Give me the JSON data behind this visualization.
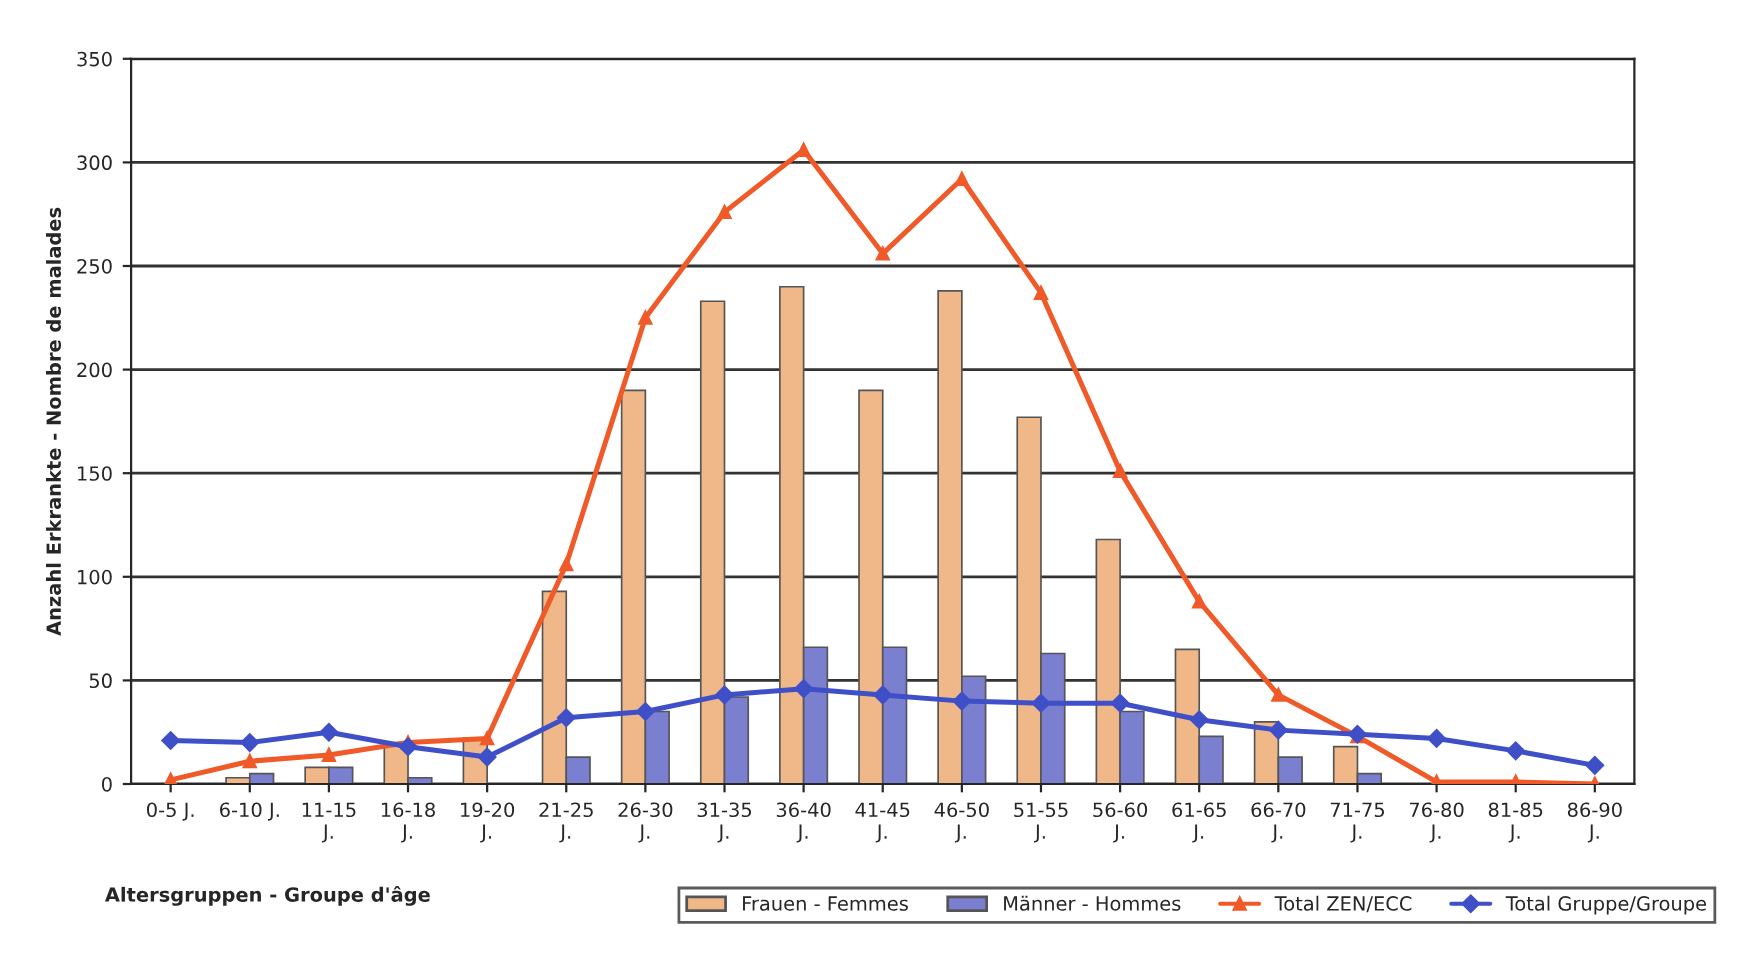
{
  "chart_data": {
    "type": "bar",
    "ylabel": "Anzahl Erkrankte - Nombre de malades",
    "annotations": [
      "Altersgruppen - Groupe d'âge"
    ],
    "categories": [
      "0-5 J.",
      "6-10 J.",
      "11-15\nJ.",
      "16-18\nJ.",
      "19-20\nJ.",
      "21-25\nJ.",
      "26-30\nJ.",
      "31-35\nJ.",
      "36-40\nJ.",
      "41-45\nJ.",
      "46-50\nJ.",
      "51-55\nJ.",
      "56-60\nJ.",
      "61-65\nJ.",
      "66-70\nJ.",
      "71-75\nJ.",
      "76-80\nJ.",
      "81-85\nJ.",
      "86-90\nJ."
    ],
    "series": [
      {
        "name": "Frauen - Femmes",
        "color": "#f0b888",
        "values": [
          0,
          3,
          8,
          20,
          22,
          93,
          190,
          233,
          240,
          190,
          238,
          177,
          118,
          65,
          30,
          18,
          0,
          0,
          0
        ]
      },
      {
        "name": "Männer - Hommes",
        "color": "#7b7fd0",
        "values": [
          0,
          5,
          8,
          3,
          0,
          13,
          35,
          42,
          66,
          66,
          52,
          63,
          35,
          23,
          13,
          5,
          0,
          0,
          0
        ]
      },
      {
        "name": "Total ZEN/ECC",
        "type": "line",
        "marker": "triangle",
        "color": "#f05a28",
        "values": [
          2,
          11,
          14,
          20,
          22,
          106,
          225,
          276,
          306,
          256,
          292,
          237,
          151,
          88,
          43,
          23,
          1,
          1,
          0
        ]
      },
      {
        "name": "Total Gruppe/Groupe",
        "type": "line",
        "marker": "diamond",
        "color": "#3f4fc8",
        "values": [
          21,
          20,
          25,
          18,
          13,
          32,
          35,
          43,
          46,
          43,
          40,
          39,
          39,
          31,
          26,
          24,
          22,
          16,
          9
        ]
      }
    ],
    "ylim": [
      0,
      350
    ],
    "yticks": [
      0,
      50,
      100,
      150,
      200,
      250,
      300,
      350
    ],
    "grid": "y",
    "legend": "bottom right"
  }
}
